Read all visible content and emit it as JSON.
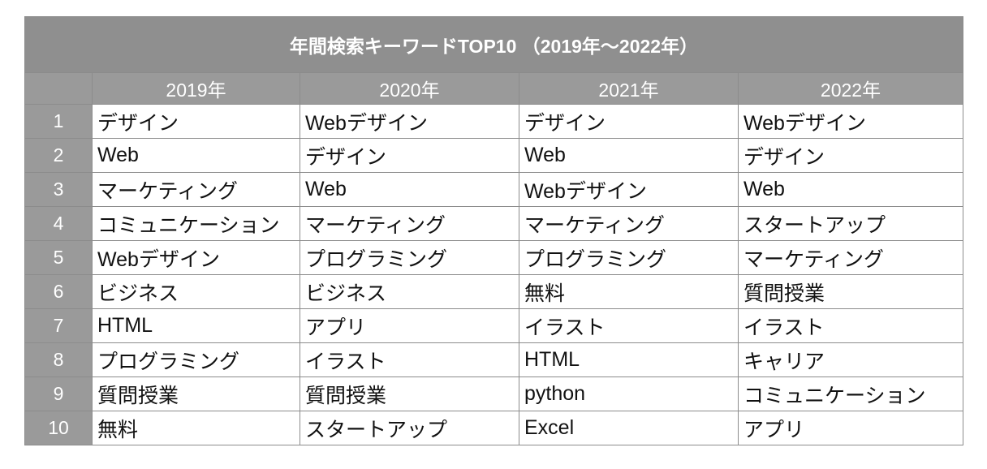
{
  "table": {
    "title": "年間検索キーワードTOP10 （2019年～2022年）",
    "columns": [
      "2019年",
      "2020年",
      "2021年",
      "2022年"
    ],
    "rows": [
      {
        "rank": "1",
        "cells": [
          "デザイン",
          "Webデザイン",
          "デザイン",
          "Webデザイン"
        ]
      },
      {
        "rank": "2",
        "cells": [
          "Web",
          "デザイン",
          "Web",
          "デザイン"
        ]
      },
      {
        "rank": "3",
        "cells": [
          "マーケティング",
          "Web",
          "Webデザイン",
          "Web"
        ]
      },
      {
        "rank": "4",
        "cells": [
          "コミュニケーション",
          "マーケティング",
          "マーケティング",
          "スタートアップ"
        ]
      },
      {
        "rank": "5",
        "cells": [
          "Webデザイン",
          "プログラミング",
          "プログラミング",
          "マーケティング"
        ]
      },
      {
        "rank": "6",
        "cells": [
          "ビジネス",
          "ビジネス",
          "無料",
          "質問授業"
        ]
      },
      {
        "rank": "7",
        "cells": [
          "HTML",
          "アプリ",
          "イラスト",
          "イラスト"
        ]
      },
      {
        "rank": "8",
        "cells": [
          "プログラミング",
          "イラスト",
          "HTML",
          "キャリア"
        ]
      },
      {
        "rank": "9",
        "cells": [
          "質問授業",
          "質問授業",
          "python",
          "コミュニケーション"
        ]
      },
      {
        "rank": "10",
        "cells": [
          "無料",
          "スタートアップ",
          "Excel",
          "アプリ"
        ]
      }
    ]
  },
  "colors": {
    "header_bg": "#8f8f8f",
    "rank_bg": "#9a9a9a",
    "border": "#8c8c8c",
    "header_text": "#ffffff",
    "cell_text": "#111111"
  }
}
